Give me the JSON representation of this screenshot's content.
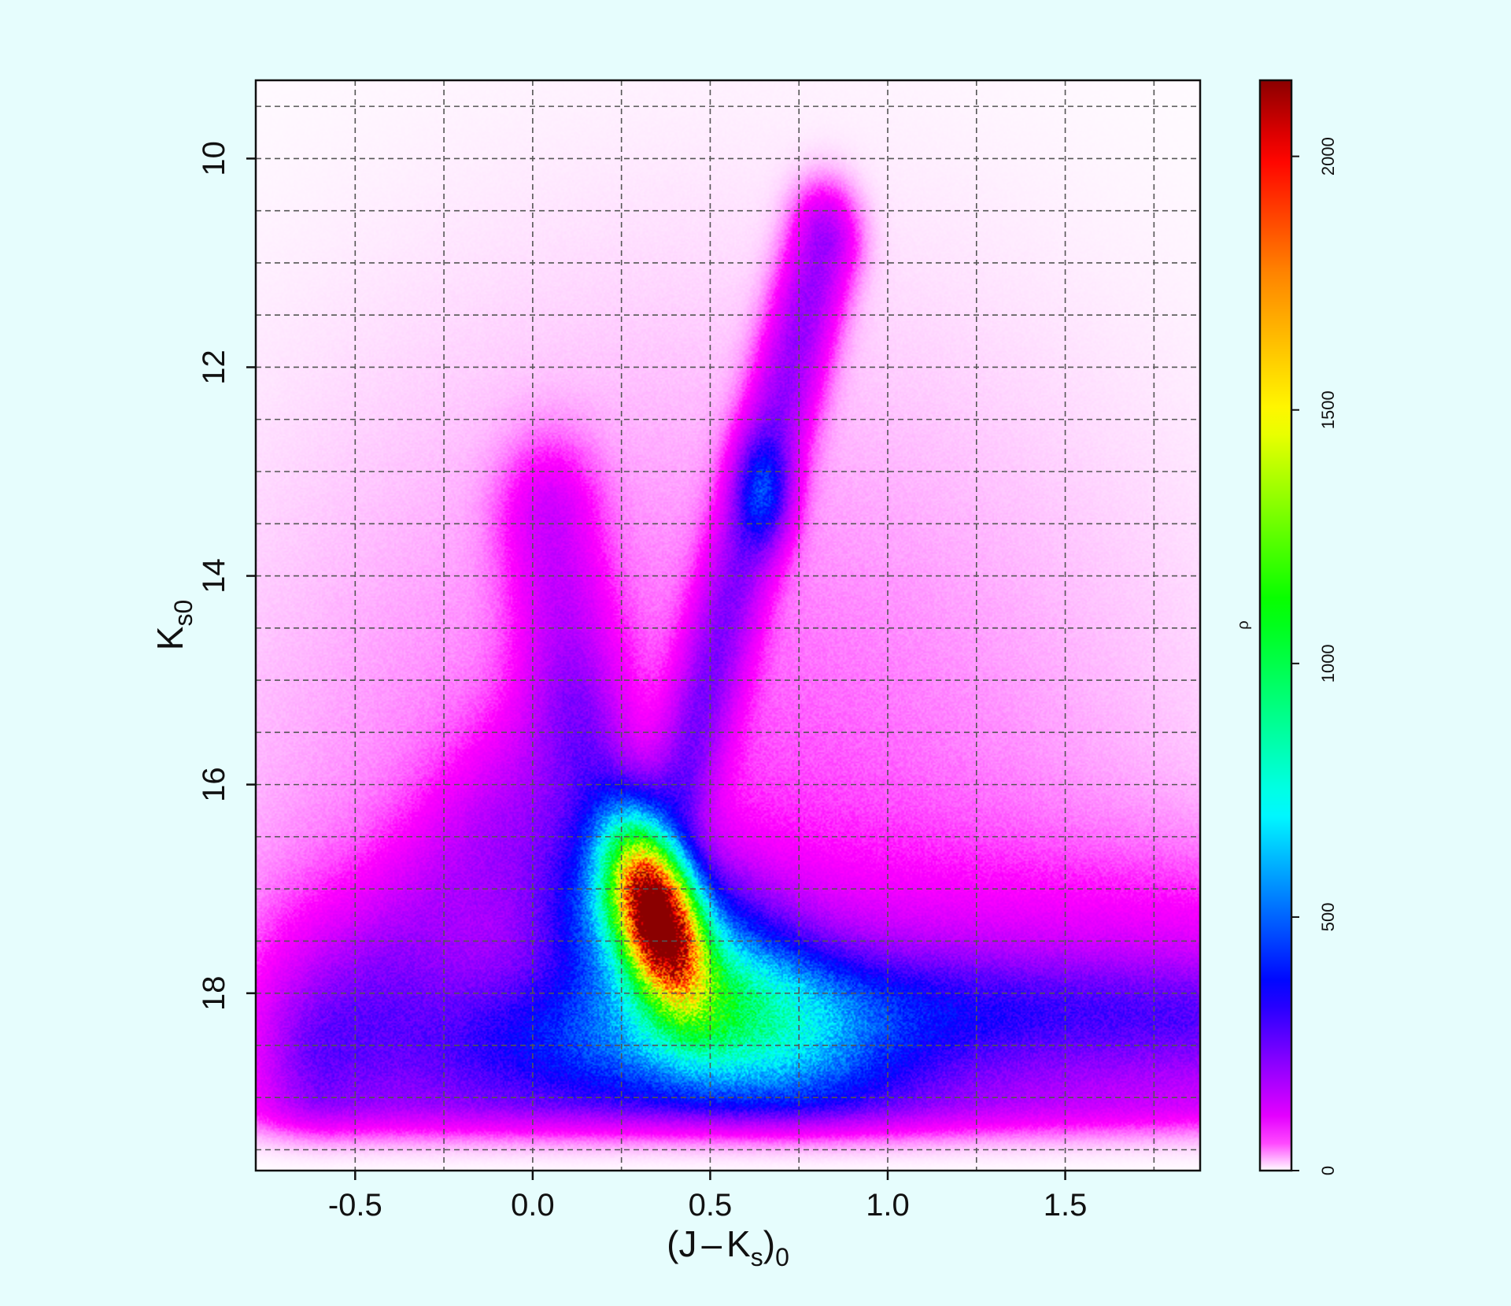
{
  "chart_data": {
    "type": "heatmap",
    "title": "",
    "xlabel": {
      "main": "(J",
      "minus": "–",
      "k": "K",
      "k_sub": "s",
      "paren": ")",
      "sub": "0"
    },
    "ylabel": {
      "main": "K",
      "sub": "s0"
    },
    "xlim": [
      -0.78,
      1.88
    ],
    "ylim": [
      19.7,
      9.25
    ],
    "x_ticks": [
      -0.5,
      0.0,
      0.5,
      1.0,
      1.5
    ],
    "x_tick_labels": [
      "-0.5",
      "0.0",
      "0.5",
      "1.0",
      "1.5"
    ],
    "y_ticks": [
      10,
      12,
      14,
      16,
      18
    ],
    "y_tick_labels": [
      "10",
      "12",
      "14",
      "16",
      "18"
    ],
    "x_grid": [
      -0.5,
      -0.25,
      0.0,
      0.25,
      0.5,
      0.75,
      1.0,
      1.25,
      1.5,
      1.75
    ],
    "y_grid": [
      9.5,
      10,
      10.5,
      11,
      11.5,
      12,
      12.5,
      13,
      13.5,
      14,
      14.5,
      15,
      15.5,
      16,
      16.5,
      17,
      17.5,
      18,
      18.5,
      19,
      19.5
    ],
    "grid": true,
    "colorbar": {
      "label": "ρ",
      "range": [
        0,
        2150
      ],
      "ticks": [
        0,
        500,
        1000,
        1500,
        2000
      ],
      "tick_labels": [
        "0",
        "500",
        "1000",
        "1500",
        "2000"
      ],
      "colors": [
        "#ffffff",
        "#ff00ff",
        "#8800ff",
        "#0000ff",
        "#00ffff",
        "#00ff00",
        "#ffff00",
        "#ff8800",
        "#ff0000",
        "#8b0000"
      ]
    },
    "density_features": [
      {
        "name": "main-sequence-turnoff clump",
        "center_x": 0.35,
        "center_y": 17.25,
        "peak_value": 2150
      },
      {
        "name": "red giant branch",
        "from": [
          0.45,
          15.5
        ],
        "to": [
          0.85,
          10.8
        ]
      },
      {
        "name": "red clump",
        "center_x": 0.65,
        "center_y": 13.2
      },
      {
        "name": "faint red sequence",
        "from": [
          0.6,
          17.9
        ],
        "to": [
          1.85,
          18.2
        ]
      },
      {
        "name": "blue plume",
        "from": [
          -0.3,
          17.5
        ],
        "to": [
          0.1,
          14.0
        ]
      }
    ]
  }
}
